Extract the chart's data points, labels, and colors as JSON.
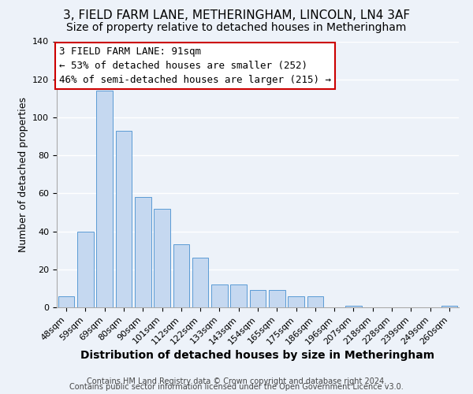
{
  "title": "3, FIELD FARM LANE, METHERINGHAM, LINCOLN, LN4 3AF",
  "subtitle": "Size of property relative to detached houses in Metheringham",
  "xlabel": "Distribution of detached houses by size in Metheringham",
  "ylabel": "Number of detached properties",
  "bar_labels": [
    "48sqm",
    "59sqm",
    "69sqm",
    "80sqm",
    "90sqm",
    "101sqm",
    "112sqm",
    "122sqm",
    "133sqm",
    "143sqm",
    "154sqm",
    "165sqm",
    "175sqm",
    "186sqm",
    "196sqm",
    "207sqm",
    "218sqm",
    "228sqm",
    "239sqm",
    "249sqm",
    "260sqm"
  ],
  "bar_values": [
    6,
    40,
    114,
    93,
    58,
    52,
    33,
    26,
    12,
    12,
    9,
    9,
    6,
    6,
    0,
    1,
    0,
    0,
    0,
    0,
    1
  ],
  "bar_color": "#c5d8f0",
  "bar_edge_color": "#5b9bd5",
  "ylim": [
    0,
    140
  ],
  "yticks": [
    0,
    20,
    40,
    60,
    80,
    100,
    120,
    140
  ],
  "annotation_title": "3 FIELD FARM LANE: 91sqm",
  "annotation_line1": "← 53% of detached houses are smaller (252)",
  "annotation_line2": "46% of semi-detached houses are larger (215) →",
  "annotation_box_color": "#ffffff",
  "annotation_box_edge": "#cc0000",
  "footer1": "Contains HM Land Registry data © Crown copyright and database right 2024.",
  "footer2": "Contains public sector information licensed under the Open Government Licence v3.0.",
  "background_color": "#edf2f9",
  "title_fontsize": 11,
  "subtitle_fontsize": 10,
  "xlabel_fontsize": 10,
  "ylabel_fontsize": 9,
  "tick_fontsize": 8,
  "annotation_fontsize": 9,
  "footer_fontsize": 7
}
